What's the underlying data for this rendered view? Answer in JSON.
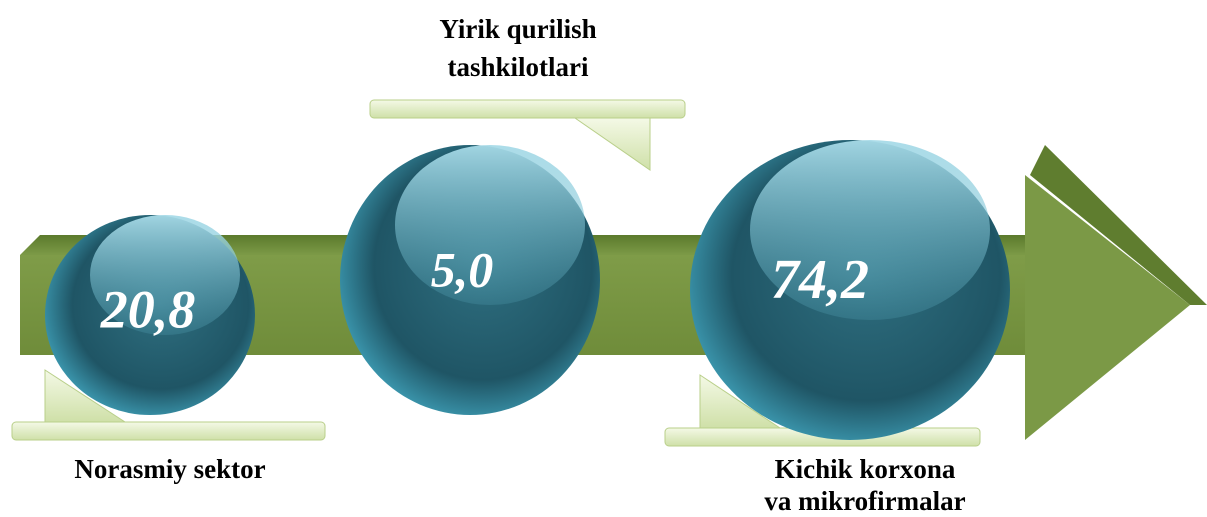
{
  "items": [
    {
      "value": "20,8",
      "label": [
        "Norasmiy sektor"
      ]
    },
    {
      "value": "5,0",
      "label": [
        "Yirik qurilish",
        "tashkilotlari"
      ]
    },
    {
      "value": "74,2",
      "label": [
        "Kichik korxona",
        "va mikrofirmalar"
      ]
    }
  ]
}
